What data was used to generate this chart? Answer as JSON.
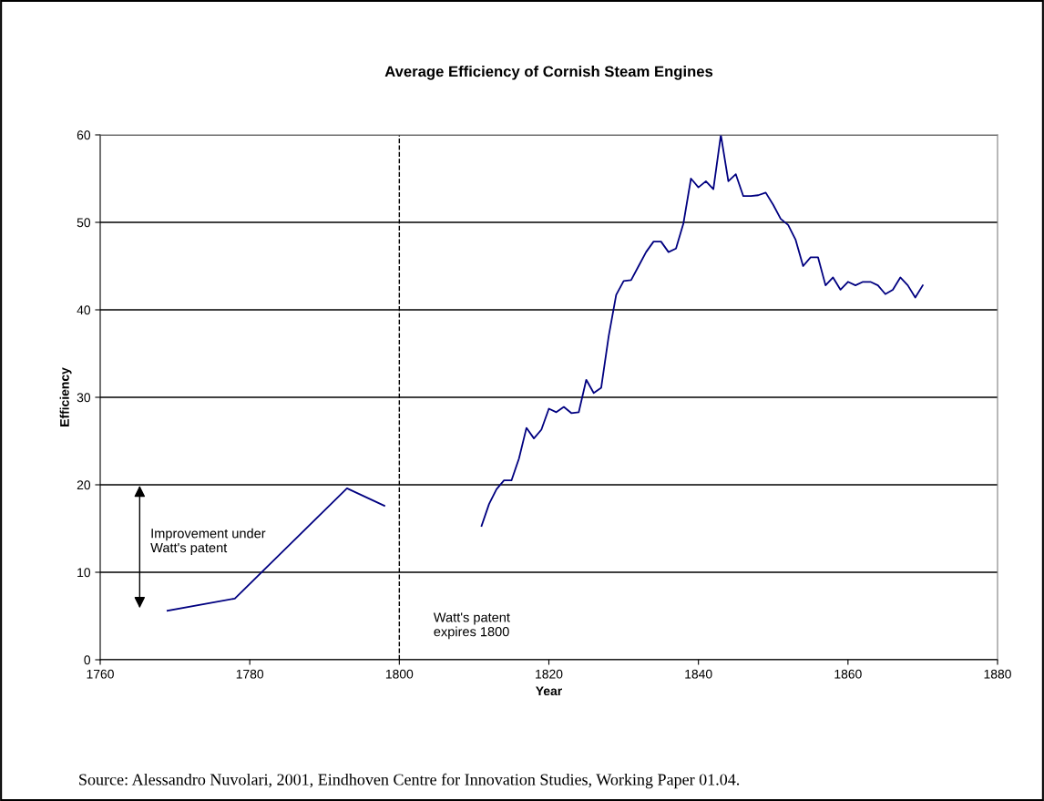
{
  "chart_data": {
    "type": "line",
    "title": "Average Efficiency of Cornish Steam Engines",
    "xlabel": "Year",
    "ylabel": "Efficiency",
    "series": [
      {
        "color": "#000080",
        "x": [
          1769,
          1778,
          1793,
          1798
        ],
        "values": [
          5.6,
          7.0,
          19.6,
          17.6
        ]
      },
      {
        "color": "#000080",
        "x": [
          1811,
          1812,
          1813,
          1814,
          1815,
          1816,
          1817,
          1818,
          1819,
          1820,
          1821,
          1822,
          1823,
          1824,
          1825,
          1826,
          1827,
          1828,
          1829,
          1830,
          1831,
          1832,
          1833,
          1834,
          1835,
          1836,
          1837,
          1838,
          1839,
          1840,
          1841,
          1842,
          1843,
          1844,
          1845,
          1846,
          1847,
          1848,
          1849,
          1850,
          1851,
          1852,
          1853,
          1854,
          1855,
          1856,
          1857,
          1858,
          1859,
          1860,
          1861,
          1862,
          1863,
          1864,
          1865,
          1866,
          1867,
          1868,
          1869,
          1870
        ],
        "values": [
          15.3,
          17.8,
          19.5,
          20.5,
          20.5,
          23.0,
          26.5,
          25.3,
          26.3,
          28.7,
          28.3,
          28.9,
          28.2,
          28.3,
          32.0,
          30.5,
          31.1,
          37.0,
          41.7,
          43.3,
          43.4,
          45.0,
          46.6,
          47.8,
          47.8,
          46.6,
          47.0,
          49.9,
          55.0,
          54.0,
          54.7,
          53.8,
          60.0,
          54.7,
          55.5,
          53.0,
          53.0,
          53.1,
          53.4,
          52.0,
          50.4,
          49.7,
          48.0,
          45.0,
          46.0,
          46.0,
          42.8,
          43.7,
          42.3,
          43.2,
          42.8,
          43.2,
          43.2,
          42.8,
          41.8,
          42.3,
          43.7,
          42.8,
          41.4,
          42.8
        ]
      }
    ],
    "xlim": [
      1760,
      1880
    ],
    "xticks": [
      1760,
      1780,
      1800,
      1820,
      1840,
      1860,
      1880
    ],
    "ylim": [
      0,
      60
    ],
    "yticks": [
      0,
      10,
      20,
      30,
      40,
      50,
      60
    ],
    "grid": "y",
    "marker": "none",
    "line_style": "solid",
    "ref_lines": [
      {
        "axis": "x",
        "value": 1800,
        "label": "Watt's patent\nexpires 1800",
        "color": "#000000",
        "line_style": "dashed"
      }
    ],
    "annotations": [
      "Improvement under\nWatt's patent",
      "Source: Alessandro Nuvolari, 2001, Eindhoven Centre for Innovation Studies, Working Paper 01.04."
    ]
  }
}
